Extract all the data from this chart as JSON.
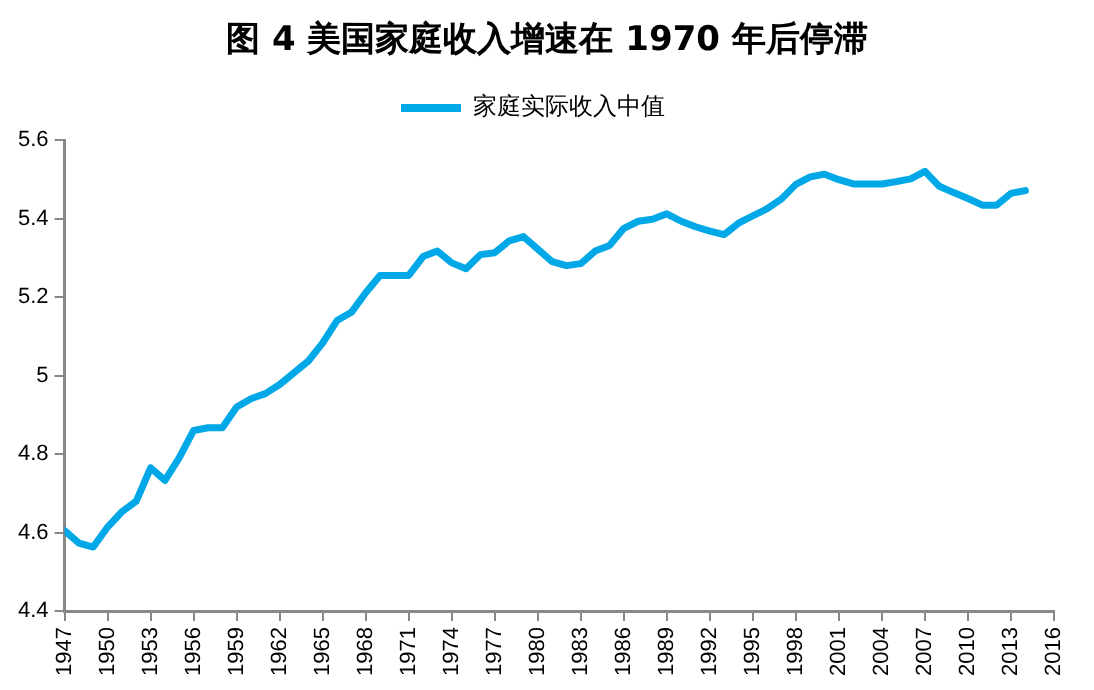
{
  "chart_data": {
    "type": "line",
    "title": "图 4  美国家庭收入增速在 1970 年后停滞",
    "x": [
      1947,
      1948,
      1949,
      1950,
      1951,
      1952,
      1953,
      1954,
      1955,
      1956,
      1957,
      1958,
      1959,
      1960,
      1961,
      1962,
      1963,
      1964,
      1965,
      1966,
      1967,
      1968,
      1969,
      1970,
      1971,
      1972,
      1973,
      1974,
      1975,
      1976,
      1977,
      1978,
      1979,
      1980,
      1981,
      1982,
      1983,
      1984,
      1985,
      1986,
      1987,
      1988,
      1989,
      1990,
      1991,
      1992,
      1993,
      1994,
      1995,
      1996,
      1997,
      1998,
      1999,
      2000,
      2001,
      2002,
      2003,
      2004,
      2005,
      2006,
      2007,
      2008,
      2009,
      2010,
      2011,
      2012,
      2013,
      2014
    ],
    "series": [
      {
        "name": "家庭实际收入中值",
        "color": "#00a8e8",
        "values": [
          4.605,
          4.573,
          4.563,
          4.614,
          4.653,
          4.68,
          4.765,
          4.733,
          4.791,
          4.86,
          4.867,
          4.867,
          4.92,
          4.941,
          4.954,
          4.977,
          5.007,
          5.037,
          5.083,
          5.14,
          5.161,
          5.211,
          5.255,
          5.255,
          5.255,
          5.303,
          5.317,
          5.287,
          5.272,
          5.308,
          5.313,
          5.343,
          5.354,
          5.322,
          5.29,
          5.28,
          5.285,
          5.317,
          5.331,
          5.375,
          5.393,
          5.398,
          5.412,
          5.393,
          5.379,
          5.368,
          5.359,
          5.388,
          5.407,
          5.425,
          5.45,
          5.487,
          5.506,
          5.513,
          5.499,
          5.488,
          5.488,
          5.488,
          5.494,
          5.501,
          5.52,
          5.482,
          5.466,
          5.451,
          5.434,
          5.434,
          5.464,
          5.471
        ]
      }
    ],
    "xlim": [
      1947,
      2016
    ],
    "xticks": [
      1947,
      1950,
      1953,
      1956,
      1959,
      1962,
      1965,
      1968,
      1971,
      1974,
      1977,
      1980,
      1983,
      1986,
      1989,
      1992,
      1995,
      1998,
      2001,
      2004,
      2007,
      2010,
      2013,
      2016
    ],
    "ylim": [
      4.4,
      5.6
    ],
    "yticks": [
      4.4,
      4.6,
      4.8,
      5,
      5.2,
      5.4,
      5.6
    ],
    "grid": false,
    "legend": "top",
    "marker": "none",
    "line_style": "solid"
  }
}
